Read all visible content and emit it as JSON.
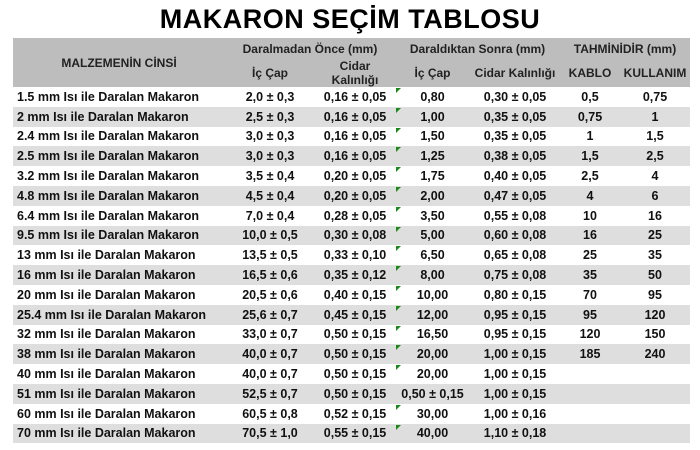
{
  "title": "MAKARON SEÇİM TABLOSU",
  "headers": {
    "material": "MALZEMENİN CİNSİ",
    "before": "Daralmadan Önce (mm)",
    "after": "Daraldıktan Sonra (mm)",
    "estimate": "TAHMİNİDİR (mm)",
    "inner": "İç Çap",
    "wall": "Cidar Kalınlığı",
    "inner2": "İç Çap",
    "wall2": "Cidar Kalınlığı",
    "cable": "KABLO",
    "usage": "KULLANIM"
  },
  "rows": [
    [
      "1.5 mm Isı ile Daralan Makaron",
      "2,0 ± 0,3",
      "0,16 ± 0,05",
      "0,80",
      "0,30 ± 0,05",
      "0,5",
      "0,75"
    ],
    [
      "2 mm Isı ile Daralan Makaron",
      "2,5 ± 0,3",
      "0,16 ± 0,05",
      "1,00",
      "0,35 ± 0,05",
      "0,75",
      "1"
    ],
    [
      "2.4 mm Isı ile Daralan Makaron",
      "3,0 ± 0,3",
      "0,16 ± 0,05",
      "1,50",
      "0,35 ± 0,05",
      "1",
      "1,5"
    ],
    [
      "2.5 mm Isı ile Daralan Makaron",
      "3,0 ± 0,3",
      "0,16 ± 0,05",
      "1,25",
      "0,38 ± 0,05",
      "1,5",
      "2,5"
    ],
    [
      "3.2 mm Isı ile Daralan Makaron",
      "3,5 ± 0,4",
      "0,20 ± 0,05",
      "1,75",
      "0,40 ± 0,05",
      "2,5",
      "4"
    ],
    [
      "4.8 mm Isı ile Daralan Makaron",
      "4,5 ± 0,4",
      "0,20 ± 0,05",
      "2,00",
      "0,47 ± 0,05",
      "4",
      "6"
    ],
    [
      "6.4 mm Isı ile Daralan Makaron",
      "7,0 ± 0,4",
      "0,28 ± 0,05",
      "3,50",
      "0,55 ± 0,08",
      "10",
      "16"
    ],
    [
      "9.5 mm Isı ile Daralan Makaron",
      "10,0 ± 0,5",
      "0,30 ± 0,08",
      "5,00",
      "0,60 ± 0,08",
      "16",
      "25"
    ],
    [
      "13 mm Isı ile Daralan Makaron",
      "13,5 ± 0,5",
      "0,33 ± 0,10",
      "6,50",
      "0,65 ± 0,08",
      "25",
      "35"
    ],
    [
      "16 mm Isı ile Daralan Makaron",
      "16,5 ± 0,6",
      "0,35 ± 0,12",
      "8,00",
      "0,75 ± 0,08",
      "35",
      "50"
    ],
    [
      "20 mm Isı ile Daralan Makaron",
      "20,5 ± 0,6",
      "0,40 ± 0,15",
      "10,00",
      "0,80 ± 0,15",
      "70",
      "95"
    ],
    [
      "25.4 mm Isı ile Daralan Makaron",
      "25,6 ± 0,7",
      "0,45 ± 0,15",
      "12,00",
      "0,95 ± 0,15",
      "95",
      "120"
    ],
    [
      "32 mm Isı ile Daralan Makaron",
      "33,0 ± 0,7",
      "0,50 ± 0,15",
      "16,50",
      "0,95 ± 0,15",
      "120",
      "150"
    ],
    [
      "38 mm Isı ile Daralan Makaron",
      "40,0 ± 0,7",
      "0,50 ± 0,15",
      "20,00",
      "1,00 ± 0,15",
      "185",
      "240"
    ],
    [
      "40 mm Isı ile Daralan Makaron",
      "40,0 ± 0,7",
      "0,50 ± 0,15",
      "20,00",
      "1,00 ± 0,15",
      "",
      ""
    ],
    [
      "51 mm Isı ile Daralan Makaron",
      "52,5 ± 0,7",
      "0,50 ± 0,15",
      "0,50 ± 0,15",
      "1,00 ± 0,15",
      "",
      ""
    ],
    [
      "60 mm Isı ile Daralan Makaron",
      "60,5 ± 0,8",
      "0,52 ± 0,15",
      "30,00",
      "1,00 ± 0,16",
      "",
      ""
    ],
    [
      "70 mm Isı ile Daralan Makaron",
      "70,5 ± 1,0",
      "0,55 ± 0,15",
      "40,00",
      "1,10 ± 0,18",
      "",
      ""
    ]
  ]
}
